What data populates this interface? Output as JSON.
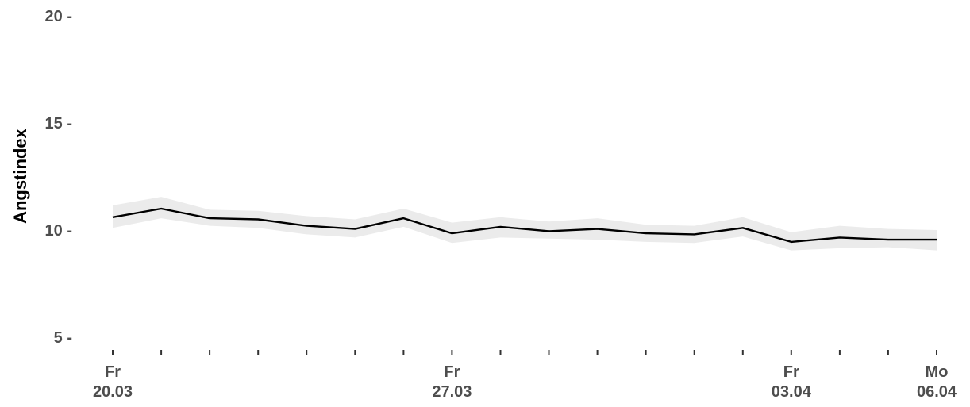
{
  "chart_data": {
    "type": "line",
    "ylabel": "Angstindex",
    "xlabel": "",
    "title": "",
    "ylim": [
      5,
      20
    ],
    "yticks": [
      {
        "value": 5,
        "label": "5 -"
      },
      {
        "value": 10,
        "label": "10 -"
      },
      {
        "value": 15,
        "label": "15 -"
      },
      {
        "value": 20,
        "label": "20 -"
      }
    ],
    "x": [
      "2020-03-20",
      "2020-03-21",
      "2020-03-22",
      "2020-03-23",
      "2020-03-24",
      "2020-03-25",
      "2020-03-26",
      "2020-03-27",
      "2020-03-28",
      "2020-03-29",
      "2020-03-30",
      "2020-03-31",
      "2020-04-01",
      "2020-04-02",
      "2020-04-03",
      "2020-04-04",
      "2020-04-05",
      "2020-04-06"
    ],
    "series": [
      {
        "values": [
          10.6,
          11.0,
          10.55,
          10.5,
          10.2,
          10.05,
          10.55,
          9.85,
          10.15,
          9.95,
          10.05,
          9.85,
          9.8,
          10.1,
          9.45,
          9.65,
          9.55,
          9.55
        ],
        "lower": [
          10.1,
          10.55,
          10.2,
          10.1,
          9.8,
          9.65,
          10.15,
          9.4,
          9.65,
          9.6,
          9.55,
          9.45,
          9.4,
          9.7,
          9.05,
          9.15,
          9.2,
          9.05
        ],
        "upper": [
          11.15,
          11.55,
          10.95,
          10.9,
          10.65,
          10.5,
          11.0,
          10.35,
          10.6,
          10.4,
          10.55,
          10.25,
          10.2,
          10.6,
          9.9,
          10.2,
          10.05,
          10.0
        ],
        "color": "#000000",
        "band_color": "#ebebeb"
      }
    ],
    "xtick_labels": [
      {
        "index": 0,
        "day": "Fr",
        "date": "20.03"
      },
      {
        "index": 7,
        "day": "Fr",
        "date": "27.03"
      },
      {
        "index": 14,
        "day": "Fr",
        "date": "03.04"
      },
      {
        "index": 17,
        "day": "Mo",
        "date": "06.04"
      }
    ],
    "grid": false
  }
}
